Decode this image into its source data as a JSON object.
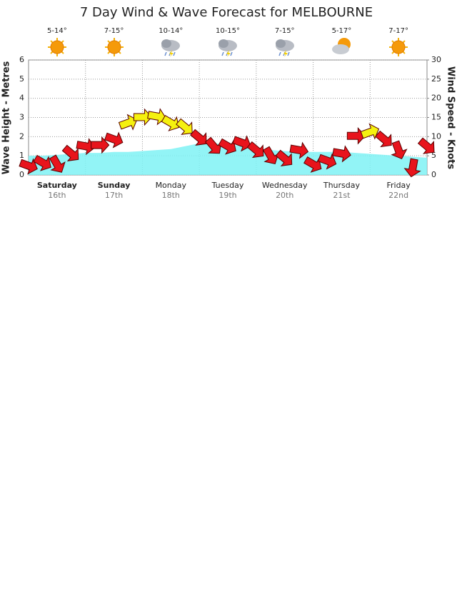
{
  "chart_data": {
    "type": "wind-wave",
    "title": "7 Day Wind & Wave Forecast for MELBOURNE",
    "days": [
      {
        "name": "Saturday",
        "date": "16th",
        "temp": "5-14°"
      },
      {
        "name": "Sunday",
        "date": "17th",
        "temp": "7-15°"
      },
      {
        "name": "Monday",
        "date": "18th",
        "temp": "10-14°"
      },
      {
        "name": "Tuesday",
        "date": "19th",
        "temp": "10-15°"
      },
      {
        "name": "Wednesday",
        "date": "20th",
        "temp": "7-15°"
      },
      {
        "name": "Thursday",
        "date": "21st",
        "temp": "5-17°"
      },
      {
        "name": "Friday",
        "date": "22nd",
        "temp": "7-17°"
      }
    ],
    "y_label": "Wave Height - Metres",
    "y2_label": "Wind Speed - Knots",
    "ylim": [
      0,
      6
    ],
    "yticks": [
      0,
      1,
      2,
      3,
      4,
      5,
      6
    ],
    "y2lim": [
      0,
      30
    ],
    "y2ticks": [
      0,
      5,
      10,
      15,
      20,
      25,
      30
    ],
    "grid": true,
    "series": [
      {
        "kind": "area",
        "color": "#7ff2f5",
        "values": [
          1.0,
          1.0,
          1.05,
          1.1,
          1.15,
          1.15,
          1.2,
          1.2,
          1.25,
          1.3,
          1.35,
          1.5,
          1.65,
          1.65,
          1.6,
          1.5,
          1.4,
          1.3,
          1.25,
          1.2,
          1.2,
          1.2,
          1.2,
          1.15,
          1.1,
          1.05,
          1.0,
          0.95,
          0.9
        ]
      },
      {
        "kind": "arrows",
        "axis": "y2",
        "values": [
          2.4,
          3.2,
          2.8,
          5.6,
          7.5,
          7.8,
          9.3,
          13.6,
          15.1,
          15.3,
          13.6,
          12.5,
          9.7,
          7.5,
          7.5,
          8.4,
          6.5,
          5.0,
          4.3,
          6.5,
          2.8,
          3.7,
          5.6,
          10.2,
          11.2,
          9.3,
          6.5,
          1.9,
          7.5
        ],
        "directions": [
          20,
          30,
          60,
          40,
          10,
          0,
          20,
          -20,
          0,
          10,
          30,
          40,
          40,
          50,
          30,
          20,
          40,
          60,
          40,
          10,
          30,
          20,
          10,
          0,
          -20,
          40,
          70,
          100,
          40
        ],
        "point_colors": [
          "#e8141c",
          "#e8141c",
          "#e8141c",
          "#e8141c",
          "#e8141c",
          "#e8141c",
          "#e8141c",
          "#f5f10f",
          "#f5f10f",
          "#f5f10f",
          "#f5f10f",
          "#f5f10f",
          "#e8141c",
          "#e8141c",
          "#e8141c",
          "#e8141c",
          "#e8141c",
          "#e8141c",
          "#e8141c",
          "#e8141c",
          "#e8141c",
          "#e8141c",
          "#e8141c",
          "#e8141c",
          "#f5f10f",
          "#e8141c",
          "#e8141c",
          "#e8141c",
          "#e8141c"
        ]
      }
    ]
  }
}
